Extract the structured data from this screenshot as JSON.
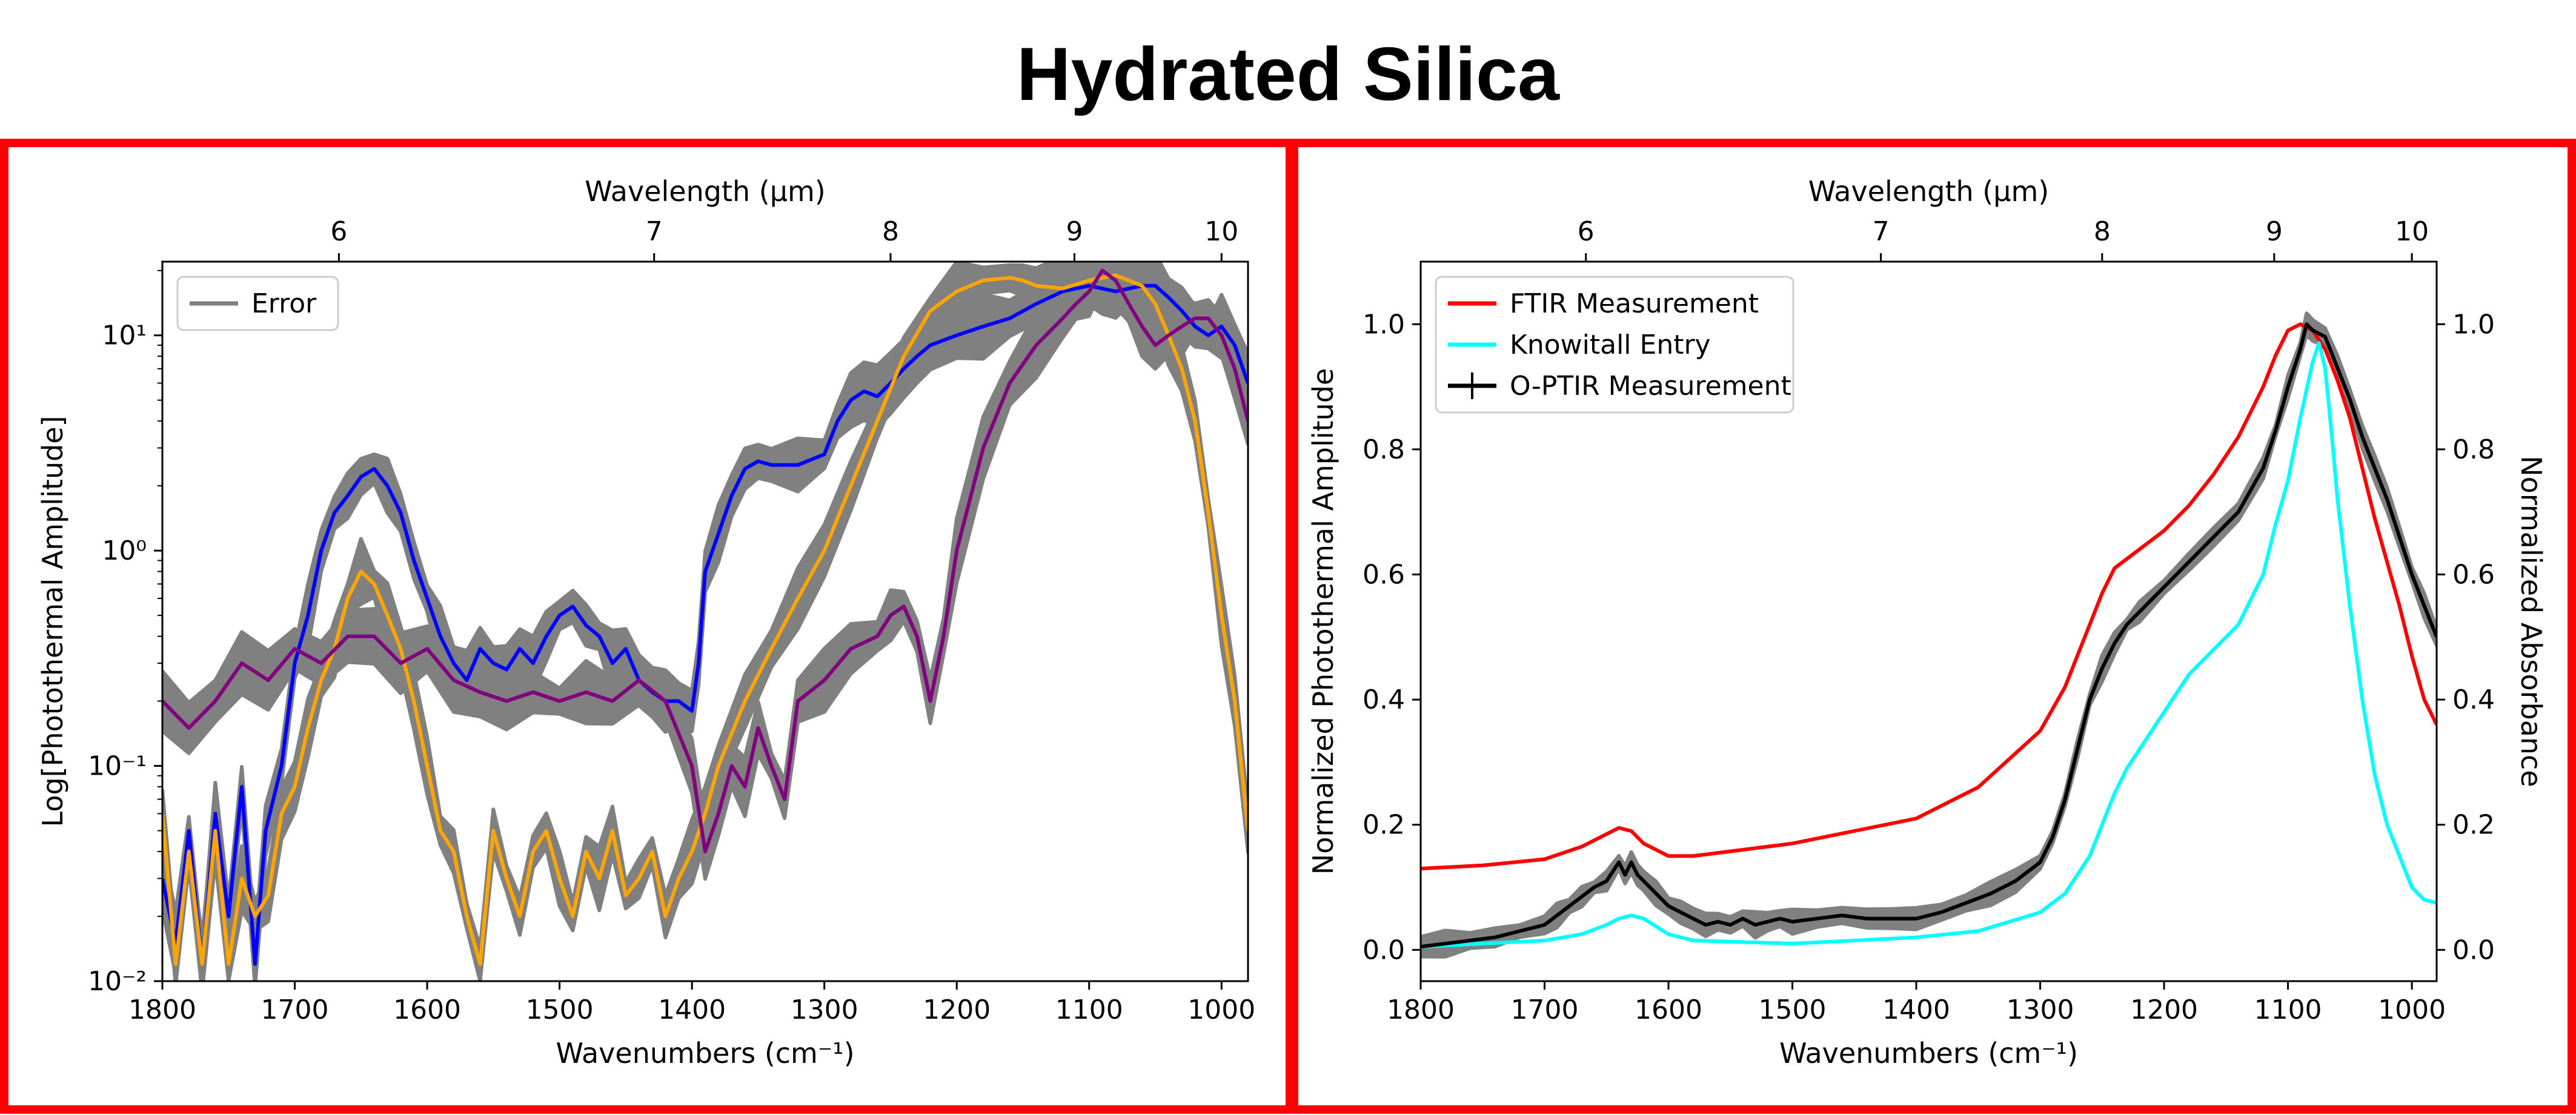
{
  "figure_title": "Hydrated Silica",
  "colors": {
    "frame": "#ff0000",
    "error_band": "#808080",
    "blue": "#0000ff",
    "orange": "#ffa500",
    "purple": "#800080",
    "ftir": "#ff0000",
    "knowitall": "#00ffff",
    "optir": "#000000"
  },
  "chart_data": [
    {
      "type": "line",
      "panel": "left",
      "xlabel": "Wavenumbers (cm⁻¹)",
      "ylabel": "Log[Photothermal Amplitude]",
      "top_xlabel": "Wavelength (μm)",
      "xlim": [
        1800,
        980
      ],
      "ylim": [
        0.01,
        22
      ],
      "yscale": "log",
      "xticks": [
        1800,
        1700,
        1600,
        1500,
        1400,
        1300,
        1200,
        1100,
        1000
      ],
      "yticks": [
        {
          "value": 0.01,
          "label": "10⁻²"
        },
        {
          "value": 0.1,
          "label": "10⁻¹"
        },
        {
          "value": 1,
          "label": "10⁰"
        },
        {
          "value": 10,
          "label": "10¹"
        }
      ],
      "top_ticks": [
        6,
        7,
        8,
        9,
        10
      ],
      "legend": [
        {
          "label": "Error",
          "color": "#808080"
        }
      ],
      "legend_position": "top-left",
      "series": [
        {
          "name": "blue",
          "color": "#0000ff",
          "x": [
            1800,
            1790,
            1780,
            1770,
            1760,
            1750,
            1740,
            1730,
            1722,
            1710,
            1700,
            1690,
            1680,
            1670,
            1660,
            1650,
            1640,
            1630,
            1620,
            1610,
            1600,
            1590,
            1580,
            1570,
            1560,
            1550,
            1540,
            1530,
            1520,
            1510,
            1500,
            1490,
            1480,
            1470,
            1460,
            1450,
            1440,
            1430,
            1420,
            1410,
            1400,
            1395,
            1390,
            1380,
            1370,
            1360,
            1350,
            1340,
            1320,
            1300,
            1290,
            1280,
            1270,
            1260,
            1250,
            1240,
            1230,
            1220,
            1200,
            1180,
            1160,
            1140,
            1120,
            1100,
            1090,
            1080,
            1070,
            1060,
            1050,
            1040,
            1030,
            1020,
            1010,
            1000,
            990,
            980
          ],
          "y": [
            0.03,
            0.015,
            0.05,
            0.012,
            0.06,
            0.02,
            0.08,
            0.012,
            0.05,
            0.1,
            0.3,
            0.5,
            1.0,
            1.5,
            1.8,
            2.2,
            2.4,
            2.0,
            1.5,
            0.9,
            0.6,
            0.4,
            0.3,
            0.25,
            0.35,
            0.3,
            0.28,
            0.35,
            0.3,
            0.4,
            0.5,
            0.55,
            0.45,
            0.4,
            0.3,
            0.35,
            0.25,
            0.22,
            0.2,
            0.2,
            0.18,
            0.3,
            0.8,
            1.2,
            1.8,
            2.4,
            2.6,
            2.5,
            2.5,
            2.8,
            4.0,
            5.0,
            5.5,
            5.2,
            6.0,
            7.0,
            8.0,
            9.0,
            10.0,
            11.0,
            12.0,
            14.0,
            16.0,
            17.0,
            16.5,
            16.0,
            16.5,
            17.0,
            17.0,
            15.0,
            13.0,
            11.0,
            10.0,
            11.0,
            9.0,
            6.0
          ]
        },
        {
          "name": "orange",
          "color": "#ffa500",
          "x": [
            1800,
            1790,
            1780,
            1770,
            1760,
            1750,
            1740,
            1730,
            1720,
            1710,
            1700,
            1690,
            1680,
            1670,
            1660,
            1650,
            1640,
            1630,
            1620,
            1610,
            1600,
            1590,
            1580,
            1570,
            1560,
            1550,
            1540,
            1530,
            1520,
            1510,
            1500,
            1490,
            1480,
            1470,
            1460,
            1450,
            1440,
            1430,
            1420,
            1410,
            1400,
            1390,
            1380,
            1360,
            1340,
            1320,
            1300,
            1280,
            1260,
            1240,
            1220,
            1200,
            1180,
            1160,
            1150,
            1140,
            1120,
            1100,
            1080,
            1060,
            1050,
            1040,
            1030,
            1020,
            1010,
            1000,
            990,
            980
          ],
          "y": [
            0.06,
            0.012,
            0.04,
            0.012,
            0.05,
            0.012,
            0.03,
            0.02,
            0.025,
            0.06,
            0.08,
            0.15,
            0.25,
            0.35,
            0.6,
            0.8,
            0.7,
            0.5,
            0.35,
            0.2,
            0.1,
            0.05,
            0.04,
            0.02,
            0.012,
            0.05,
            0.03,
            0.02,
            0.04,
            0.05,
            0.03,
            0.02,
            0.04,
            0.03,
            0.05,
            0.025,
            0.03,
            0.04,
            0.02,
            0.03,
            0.04,
            0.06,
            0.1,
            0.2,
            0.35,
            0.6,
            1.0,
            2.0,
            4.0,
            8.0,
            13.0,
            16.0,
            18.0,
            18.5,
            18.0,
            17.0,
            16.5,
            18.0,
            19.0,
            17.0,
            14.0,
            10.0,
            7.0,
            4.0,
            1.5,
            0.5,
            0.2,
            0.05
          ]
        },
        {
          "name": "purple",
          "color": "#800080",
          "x": [
            1800,
            1780,
            1760,
            1740,
            1720,
            1700,
            1680,
            1660,
            1640,
            1620,
            1600,
            1580,
            1560,
            1540,
            1520,
            1500,
            1480,
            1460,
            1440,
            1420,
            1400,
            1390,
            1380,
            1370,
            1360,
            1350,
            1340,
            1330,
            1320,
            1300,
            1280,
            1260,
            1250,
            1240,
            1230,
            1220,
            1210,
            1200,
            1180,
            1160,
            1140,
            1120,
            1110,
            1100,
            1090,
            1080,
            1070,
            1060,
            1050,
            1040,
            1030,
            1020,
            1010,
            1000,
            990,
            980
          ],
          "y": [
            0.2,
            0.15,
            0.2,
            0.3,
            0.25,
            0.35,
            0.3,
            0.4,
            0.4,
            0.3,
            0.35,
            0.25,
            0.22,
            0.2,
            0.22,
            0.2,
            0.22,
            0.2,
            0.25,
            0.2,
            0.1,
            0.04,
            0.06,
            0.1,
            0.08,
            0.15,
            0.1,
            0.07,
            0.2,
            0.25,
            0.35,
            0.4,
            0.5,
            0.55,
            0.4,
            0.2,
            0.4,
            1.0,
            3.0,
            6.0,
            9.0,
            12.0,
            14.0,
            16.0,
            20.0,
            18.0,
            14.0,
            11.0,
            9.0,
            10.0,
            11.0,
            12.0,
            12.0,
            10.0,
            7.0,
            4.0
          ]
        }
      ]
    },
    {
      "type": "line",
      "panel": "right",
      "xlabel": "Wavenumbers (cm⁻¹)",
      "ylabel": "Normalized Photothermal Amplitude",
      "ylabel_right": "Normalized Absorbance",
      "top_xlabel": "Wavelength (μm)",
      "xlim": [
        1800,
        980
      ],
      "ylim": [
        -0.05,
        1.1
      ],
      "xticks": [
        1800,
        1700,
        1600,
        1500,
        1400,
        1300,
        1200,
        1100,
        1000
      ],
      "yticks": [
        0.0,
        0.2,
        0.4,
        0.6,
        0.8,
        1.0
      ],
      "top_ticks": [
        6,
        7,
        8,
        9,
        10
      ],
      "legend": [
        {
          "label": "FTIR Measurement",
          "color": "#ff0000"
        },
        {
          "label": "Knowitall Entry",
          "color": "#00ffff"
        },
        {
          "label": "O-PTIR Measurement",
          "color": "#000000"
        }
      ],
      "legend_position": "top-left",
      "series": [
        {
          "name": "FTIR Measurement",
          "color": "#ff0000",
          "x": [
            1800,
            1750,
            1700,
            1670,
            1650,
            1640,
            1630,
            1620,
            1600,
            1580,
            1500,
            1400,
            1350,
            1300,
            1280,
            1260,
            1250,
            1240,
            1220,
            1200,
            1180,
            1160,
            1140,
            1120,
            1110,
            1100,
            1090,
            1080,
            1070,
            1060,
            1050,
            1040,
            1030,
            1020,
            1010,
            1000,
            990,
            980
          ],
          "y": [
            0.13,
            0.135,
            0.145,
            0.165,
            0.185,
            0.195,
            0.19,
            0.17,
            0.15,
            0.15,
            0.17,
            0.21,
            0.26,
            0.35,
            0.42,
            0.52,
            0.57,
            0.61,
            0.64,
            0.67,
            0.71,
            0.76,
            0.82,
            0.9,
            0.95,
            0.99,
            1.0,
            0.99,
            0.96,
            0.91,
            0.85,
            0.77,
            0.69,
            0.62,
            0.55,
            0.47,
            0.4,
            0.36
          ]
        },
        {
          "name": "Knowitall Entry",
          "color": "#00ffff",
          "x": [
            1800,
            1750,
            1700,
            1670,
            1650,
            1640,
            1630,
            1620,
            1600,
            1580,
            1500,
            1400,
            1350,
            1300,
            1280,
            1260,
            1250,
            1240,
            1230,
            1220,
            1200,
            1180,
            1160,
            1140,
            1120,
            1110,
            1100,
            1090,
            1080,
            1075,
            1070,
            1065,
            1060,
            1050,
            1040,
            1030,
            1020,
            1010,
            1000,
            990,
            980
          ],
          "y": [
            0.005,
            0.01,
            0.015,
            0.025,
            0.04,
            0.05,
            0.055,
            0.05,
            0.025,
            0.015,
            0.01,
            0.02,
            0.03,
            0.06,
            0.09,
            0.15,
            0.2,
            0.25,
            0.29,
            0.32,
            0.38,
            0.44,
            0.48,
            0.52,
            0.6,
            0.68,
            0.75,
            0.85,
            0.94,
            0.97,
            0.93,
            0.83,
            0.72,
            0.55,
            0.4,
            0.28,
            0.2,
            0.15,
            0.1,
            0.08,
            0.075
          ]
        },
        {
          "name": "O-PTIR Measurement",
          "color": "#000000",
          "x": [
            1800,
            1780,
            1760,
            1740,
            1720,
            1700,
            1690,
            1680,
            1670,
            1660,
            1650,
            1640,
            1635,
            1630,
            1625,
            1620,
            1610,
            1600,
            1590,
            1580,
            1570,
            1560,
            1550,
            1540,
            1530,
            1520,
            1510,
            1500,
            1480,
            1460,
            1440,
            1420,
            1400,
            1380,
            1360,
            1340,
            1320,
            1300,
            1290,
            1280,
            1270,
            1260,
            1250,
            1240,
            1230,
            1220,
            1200,
            1180,
            1160,
            1140,
            1120,
            1110,
            1100,
            1090,
            1085,
            1080,
            1070,
            1060,
            1050,
            1040,
            1030,
            1020,
            1010,
            1000,
            990,
            980
          ],
          "y": [
            0.005,
            0.01,
            0.015,
            0.02,
            0.03,
            0.04,
            0.055,
            0.07,
            0.085,
            0.1,
            0.11,
            0.14,
            0.12,
            0.14,
            0.12,
            0.11,
            0.09,
            0.07,
            0.06,
            0.05,
            0.04,
            0.045,
            0.04,
            0.05,
            0.04,
            0.045,
            0.05,
            0.045,
            0.05,
            0.055,
            0.05,
            0.05,
            0.05,
            0.06,
            0.075,
            0.09,
            0.11,
            0.14,
            0.18,
            0.24,
            0.32,
            0.4,
            0.45,
            0.49,
            0.52,
            0.54,
            0.58,
            0.62,
            0.66,
            0.7,
            0.77,
            0.83,
            0.9,
            0.96,
            1.0,
            0.99,
            0.98,
            0.93,
            0.88,
            0.82,
            0.77,
            0.72,
            0.66,
            0.6,
            0.55,
            0.5
          ]
        }
      ]
    }
  ]
}
